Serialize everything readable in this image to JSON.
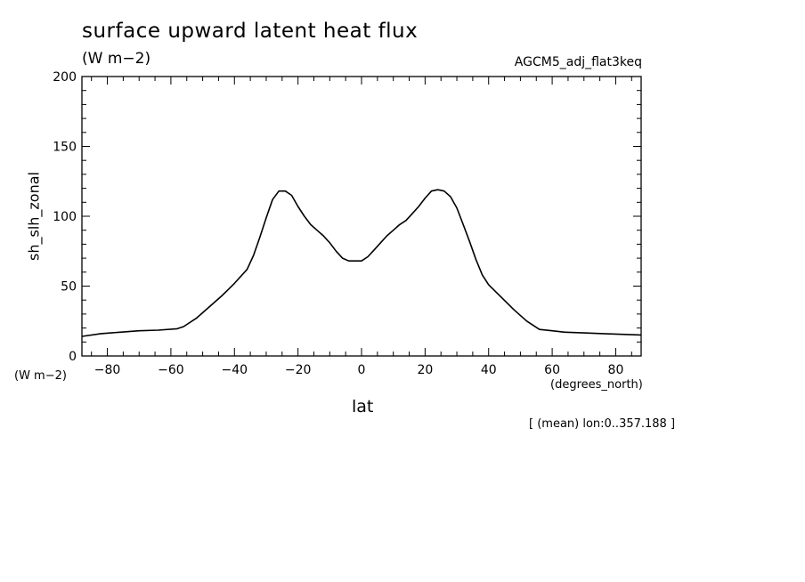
{
  "header": {
    "title": "surface upward latent heat flux",
    "units": "(W m−2)",
    "run_name": "AGCM5_adj_flat3keq"
  },
  "axes": {
    "y_units": "(W m−2)",
    "x_units": "(degrees_north)",
    "footnote": "[ (mean) lon:0..357.188 ]"
  },
  "chart_data": {
    "type": "line",
    "title": "surface upward latent heat flux",
    "xlabel": "lat",
    "ylabel": "sh_slh_zonal",
    "xlim": [
      -88,
      88
    ],
    "ylim": [
      0,
      200
    ],
    "x_ticks": [
      -80,
      -60,
      -40,
      -20,
      0,
      20,
      40,
      60,
      80
    ],
    "x_tick_labels": [
      "−80",
      "−60",
      "−40",
      "−20",
      "0",
      "20",
      "40",
      "60",
      "80"
    ],
    "y_ticks": [
      0,
      50,
      100,
      150,
      200
    ],
    "y_tick_labels": [
      "0",
      "50",
      "100",
      "150",
      "200"
    ],
    "grid": false,
    "line_color": "#000000",
    "series": [
      {
        "x": [
          -88,
          -82,
          -76,
          -70,
          -64,
          -58,
          -56,
          -52,
          -48,
          -44,
          -40,
          -36,
          -34,
          -32,
          -30,
          -28,
          -26,
          -24,
          -22,
          -20,
          -18,
          -16,
          -14,
          -12,
          -10,
          -8,
          -6,
          -4,
          -2,
          0,
          2,
          4,
          6,
          8,
          10,
          12,
          14,
          16,
          18,
          20,
          22,
          24,
          26,
          28,
          30,
          32,
          34,
          36,
          38,
          40,
          44,
          48,
          52,
          56,
          60,
          64,
          70,
          76,
          82,
          88
        ],
        "y": [
          14,
          16,
          17,
          18,
          18.5,
          19.5,
          21,
          27,
          35,
          43,
          52,
          62,
          72,
          85,
          99,
          112,
          118,
          118,
          115,
          107,
          100,
          94,
          90,
          86,
          81,
          75,
          70,
          68,
          68,
          68,
          71,
          76,
          81,
          86,
          90,
          94,
          97,
          102,
          107,
          113,
          118,
          119,
          118,
          114,
          106,
          94,
          82,
          69,
          58,
          51,
          42,
          33,
          25,
          19,
          18,
          17,
          16.5,
          16,
          15.5,
          15
        ]
      }
    ]
  }
}
